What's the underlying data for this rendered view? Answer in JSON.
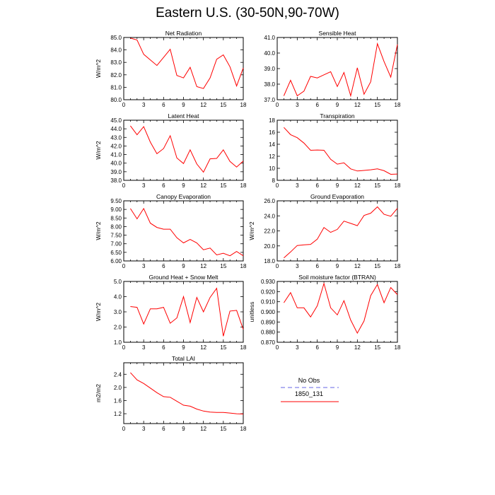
{
  "title": "Eastern U.S. (30-50N,90-70W)",
  "colors": {
    "model": "#ff0000",
    "obs": "#9999ee"
  },
  "legend": {
    "obs_label": "No Obs",
    "model_label": "1850_131"
  },
  "chart_data": [
    {
      "type": "line",
      "title": "Net Radiation",
      "ylabel": "W/m^2",
      "xlim": [
        0,
        18
      ],
      "xticks": [
        0,
        3,
        6,
        9,
        12,
        15,
        18
      ],
      "ylim": [
        80.0,
        85.0
      ],
      "yticks": [
        "80.0",
        "81.0",
        "82.0",
        "83.0",
        "84.0",
        "85.0"
      ],
      "x": [
        1,
        2,
        3,
        4,
        5,
        6,
        7,
        8,
        9,
        10,
        11,
        12,
        13,
        14,
        15,
        16,
        17,
        18
      ],
      "series": [
        {
          "values": [
            84.95,
            84.8,
            83.65,
            83.2,
            82.75,
            83.4,
            84.05,
            81.95,
            81.75,
            82.6,
            81.05,
            80.9,
            81.75,
            83.25,
            83.6,
            82.65,
            81.1,
            82.55
          ]
        }
      ]
    },
    {
      "type": "line",
      "title": "Sensible Heat",
      "ylabel": "",
      "xlim": [
        0,
        18
      ],
      "xticks": [
        0,
        3,
        6,
        9,
        12,
        15,
        18
      ],
      "ylim": [
        37.0,
        41.0
      ],
      "yticks": [
        "37.0",
        "38.0",
        "39.0",
        "40.0",
        "41.0"
      ],
      "x": [
        1,
        2,
        3,
        4,
        5,
        6,
        7,
        8,
        9,
        10,
        11,
        12,
        13,
        14,
        15,
        16,
        17,
        18
      ],
      "series": [
        {
          "values": [
            37.25,
            38.25,
            37.25,
            37.55,
            38.5,
            38.4,
            38.6,
            38.8,
            37.85,
            38.75,
            37.25,
            39.05,
            37.35,
            38.15,
            40.6,
            39.45,
            38.45,
            40.55
          ]
        }
      ]
    },
    {
      "type": "line",
      "title": "Latent Heat",
      "ylabel": "W/m^2",
      "xlim": [
        0,
        18
      ],
      "xticks": [
        0,
        3,
        6,
        9,
        12,
        15,
        18
      ],
      "ylim": [
        38.0,
        45.0
      ],
      "yticks": [
        "38.0",
        "39.0",
        "40.0",
        "41.0",
        "42.0",
        "43.0",
        "44.0",
        "45.0"
      ],
      "x": [
        1,
        2,
        3,
        4,
        5,
        6,
        7,
        8,
        9,
        10,
        11,
        12,
        13,
        14,
        15,
        16,
        17,
        18
      ],
      "series": [
        {
          "values": [
            44.35,
            43.3,
            44.25,
            42.45,
            41.1,
            41.7,
            43.2,
            40.6,
            39.95,
            41.55,
            39.9,
            38.95,
            40.5,
            40.55,
            41.55,
            40.2,
            39.55,
            40.25
          ]
        }
      ]
    },
    {
      "type": "line",
      "title": "Transpiration",
      "ylabel": "",
      "xlim": [
        0,
        18
      ],
      "xticks": [
        0,
        3,
        6,
        9,
        12,
        15,
        18
      ],
      "ylim": [
        8,
        18
      ],
      "yticks": [
        "8",
        "10",
        "12",
        "14",
        "16",
        "18"
      ],
      "x": [
        1,
        2,
        3,
        4,
        5,
        6,
        7,
        8,
        9,
        10,
        11,
        12,
        13,
        14,
        15,
        16,
        17,
        18
      ],
      "series": [
        {
          "values": [
            16.8,
            15.6,
            15.1,
            14.2,
            13.0,
            13.05,
            13.0,
            11.5,
            10.7,
            10.9,
            9.9,
            9.55,
            9.65,
            9.75,
            9.9,
            9.6,
            9.0,
            9.05
          ]
        }
      ]
    },
    {
      "type": "line",
      "title": "Canopy Evaporation",
      "ylabel": "W/m^2",
      "xlim": [
        0,
        18
      ],
      "xticks": [
        0,
        3,
        6,
        9,
        12,
        15,
        18
      ],
      "ylim": [
        6.0,
        9.5
      ],
      "yticks": [
        "6.00",
        "6.50",
        "7.00",
        "7.50",
        "8.00",
        "8.50",
        "9.00",
        "9.50"
      ],
      "x": [
        1,
        2,
        3,
        4,
        5,
        6,
        7,
        8,
        9,
        10,
        11,
        12,
        13,
        14,
        15,
        16,
        17,
        18
      ],
      "series": [
        {
          "values": [
            9.05,
            8.45,
            9.05,
            8.2,
            7.95,
            7.85,
            7.85,
            7.35,
            7.05,
            7.25,
            7.05,
            6.65,
            6.75,
            6.35,
            6.45,
            6.3,
            6.55,
            6.3
          ]
        }
      ]
    },
    {
      "type": "line",
      "title": "Ground Evaporation",
      "ylabel": "W/m^2",
      "xlim": [
        0,
        18
      ],
      "xticks": [
        0,
        3,
        6,
        9,
        12,
        15,
        18
      ],
      "ylim": [
        18.0,
        26.0
      ],
      "yticks": [
        "18.0",
        "20.0",
        "22.0",
        "24.0",
        "26.0"
      ],
      "x": [
        1,
        2,
        3,
        4,
        5,
        6,
        7,
        8,
        9,
        10,
        11,
        12,
        13,
        14,
        15,
        16,
        17,
        18
      ],
      "series": [
        {
          "values": [
            18.4,
            19.2,
            20.05,
            20.15,
            20.2,
            20.9,
            22.45,
            21.8,
            22.2,
            23.3,
            23.0,
            22.7,
            24.05,
            24.35,
            25.2,
            24.2,
            23.95,
            25.0
          ]
        }
      ]
    },
    {
      "type": "line",
      "title": "Ground Heat + Snow Melt",
      "ylabel": "W/m^2",
      "xlim": [
        0,
        18
      ],
      "xticks": [
        0,
        3,
        6,
        9,
        12,
        15,
        18
      ],
      "ylim": [
        1.0,
        5.0
      ],
      "yticks": [
        "1.0",
        "2.0",
        "3.0",
        "4.0",
        "5.0"
      ],
      "x": [
        1,
        2,
        3,
        4,
        5,
        6,
        7,
        8,
        9,
        10,
        11,
        12,
        13,
        14,
        15,
        16,
        17,
        18
      ],
      "series": [
        {
          "values": [
            3.35,
            3.3,
            2.2,
            3.2,
            3.2,
            3.3,
            2.25,
            2.6,
            4.0,
            2.3,
            3.95,
            3.0,
            3.95,
            4.55,
            1.4,
            3.05,
            3.1,
            1.85
          ]
        }
      ]
    },
    {
      "type": "line",
      "title": "Soil moisture factor (BTRAN)",
      "ylabel": "unitless",
      "xlim": [
        0,
        18
      ],
      "xticks": [
        0,
        3,
        6,
        9,
        12,
        15,
        18
      ],
      "ylim": [
        0.87,
        0.93
      ],
      "yticks": [
        "0.870",
        "0.880",
        "0.890",
        "0.900",
        "0.910",
        "0.920",
        "0.930"
      ],
      "x": [
        1,
        2,
        3,
        4,
        5,
        6,
        7,
        8,
        9,
        10,
        11,
        12,
        13,
        14,
        15,
        16,
        17,
        18
      ],
      "series": [
        {
          "values": [
            0.909,
            0.919,
            0.904,
            0.904,
            0.895,
            0.906,
            0.928,
            0.904,
            0.897,
            0.911,
            0.892,
            0.879,
            0.891,
            0.916,
            0.927,
            0.909,
            0.924,
            0.917
          ]
        }
      ]
    },
    {
      "type": "line",
      "title": "Total LAI",
      "ylabel": "m2/m2",
      "xlim": [
        0,
        18
      ],
      "xticks": [
        0,
        3,
        6,
        9,
        12,
        15,
        18
      ],
      "ylim": [
        0.9,
        2.75
      ],
      "yticks": [
        "1.2",
        "1.6",
        "2.0",
        "2.4"
      ],
      "x": [
        1,
        2,
        3,
        4,
        5,
        6,
        7,
        8,
        9,
        10,
        11,
        12,
        13,
        14,
        15,
        16,
        17,
        18
      ],
      "series": [
        {
          "values": [
            2.45,
            2.23,
            2.12,
            1.98,
            1.84,
            1.72,
            1.7,
            1.58,
            1.46,
            1.43,
            1.34,
            1.28,
            1.25,
            1.24,
            1.24,
            1.22,
            1.2,
            1.19
          ]
        }
      ]
    }
  ]
}
